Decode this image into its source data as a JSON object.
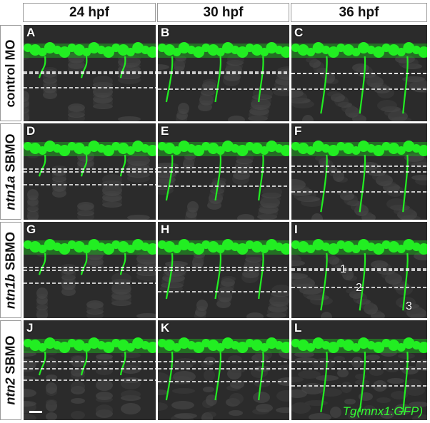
{
  "columns": [
    "24 hpf",
    "30 hpf",
    "36 hpf"
  ],
  "rows": [
    {
      "gene": "",
      "suffix": "control MO"
    },
    {
      "gene": "ntn1a",
      "suffix": " SBMO"
    },
    {
      "gene": "ntn1b",
      "suffix": " SBMO"
    },
    {
      "gene": "ntn2",
      "suffix": " SBMO"
    }
  ],
  "panel_labels": [
    "A",
    "B",
    "C",
    "D",
    "E",
    "F",
    "G",
    "H",
    "I",
    "J",
    "K",
    "L"
  ],
  "segment_labels": [
    "1",
    "2",
    "3"
  ],
  "reporter_label": "Tg(mnx1:GFP)",
  "colors": {
    "gfp": "#22ee22",
    "background": "#2b2b2b",
    "frame": "#9a9a9a"
  }
}
